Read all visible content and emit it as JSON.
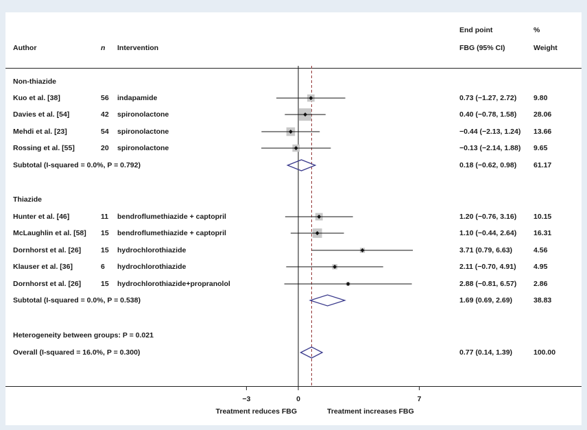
{
  "chart_data": {
    "type": "forest",
    "header": {
      "author": "Author",
      "n": "n",
      "intervention": "Intervention",
      "endpoint_line1": "End point",
      "endpoint_line2": "FBG (95% CI)",
      "weight_line1": "%",
      "weight_line2": "Weight"
    },
    "xaxis": {
      "range": [
        -3,
        7
      ],
      "ticks": [
        "−3",
        "0",
        "7"
      ],
      "label_left": "Treatment reduces FBG",
      "label_right": "Treatment increases FBG",
      "null_line": 0,
      "overall_line": 0.77
    },
    "groups": [
      {
        "label": "Non-thiazide",
        "studies": [
          {
            "author": "Kuo et al. [38]",
            "n": "56",
            "intervention": "indapamide",
            "est": 0.73,
            "lo": -1.27,
            "hi": 2.72,
            "ci_text": "0.73 (−1.27, 2.72)",
            "weight": 9.8,
            "weight_text": "9.80"
          },
          {
            "author": "Davies et al. [54]",
            "n": "42",
            "intervention": "spironolactone",
            "est": 0.4,
            "lo": -0.78,
            "hi": 1.58,
            "ci_text": "0.40 (−0.78, 1.58)",
            "weight": 28.06,
            "weight_text": "28.06"
          },
          {
            "author": "Mehdi et al. [23]",
            "n": "54",
            "intervention": "spironolactone",
            "est": -0.44,
            "lo": -2.13,
            "hi": 1.24,
            "ci_text": "−0.44 (−2.13, 1.24)",
            "weight": 13.66,
            "weight_text": "13.66"
          },
          {
            "author": "Rossing et al. [55]",
            "n": "20",
            "intervention": "spironolactone",
            "est": -0.13,
            "lo": -2.14,
            "hi": 1.88,
            "ci_text": "−0.13 (−2.14, 1.88)",
            "weight": 9.65,
            "weight_text": "9.65"
          }
        ],
        "subtotal": {
          "label": "Subtotal  (I-squared = 0.0%, P = 0.792)",
          "est": 0.18,
          "lo": -0.62,
          "hi": 0.98,
          "ci_text": "0.18 (−0.62, 0.98)",
          "weight_text": "61.17"
        }
      },
      {
        "label": "Thiazide",
        "studies": [
          {
            "author": "Hunter et al. [46]",
            "n": "11",
            "intervention": "bendroflumethiazide + captopril",
            "est": 1.2,
            "lo": -0.76,
            "hi": 3.16,
            "ci_text": "1.20 (−0.76, 3.16)",
            "weight": 10.15,
            "weight_text": "10.15"
          },
          {
            "author": "McLaughlin et al. [58]",
            "n": "15",
            "intervention": "bendroflumethiazide + captopril",
            "est": 1.1,
            "lo": -0.44,
            "hi": 2.64,
            "ci_text": "1.10 (−0.44, 2.64)",
            "weight": 16.31,
            "weight_text": "16.31"
          },
          {
            "author": "Dornhorst et al. [26]",
            "n": "15",
            "intervention": "hydrochlorothiazide",
            "est": 3.71,
            "lo": 0.79,
            "hi": 6.63,
            "ci_text": "3.71 (0.79, 6.63)",
            "weight": 4.56,
            "weight_text": "4.56"
          },
          {
            "author": "Klauser et al. [36]",
            "n": "6",
            "intervention": "hydrochlorothiazide",
            "est": 2.11,
            "lo": -0.7,
            "hi": 4.91,
            "ci_text": "2.11 (−0.70, 4.91)",
            "weight": 4.95,
            "weight_text": "4.95"
          },
          {
            "author": "Dornhorst et al. [26]",
            "n": "15",
            "intervention": "hydrochlorothiazide+propranolol",
            "est": 2.88,
            "lo": -0.81,
            "hi": 6.57,
            "ci_text": "2.88 (−0.81, 6.57)",
            "weight": 2.86,
            "weight_text": "2.86"
          }
        ],
        "subtotal": {
          "label": "Subtotal  (I-squared = 0.0%, P = 0.538)",
          "est": 1.69,
          "lo": 0.69,
          "hi": 2.69,
          "ci_text": "1.69 (0.69, 2.69)",
          "weight_text": "38.83"
        }
      }
    ],
    "heterogeneity": "Heterogeneity between groups: P = 0.021",
    "overall": {
      "label": "Overall  (I-squared = 16.0%, P = 0.300)",
      "est": 0.77,
      "lo": 0.14,
      "hi": 1.39,
      "ci_text": "0.77 (0.14, 1.39)",
      "weight_text": "100.00"
    },
    "colors": {
      "diamond": "#3a3a8c",
      "box": "#c8c8c8",
      "ref_line": "#8c2a2a",
      "text": "#1a1a1a"
    }
  }
}
